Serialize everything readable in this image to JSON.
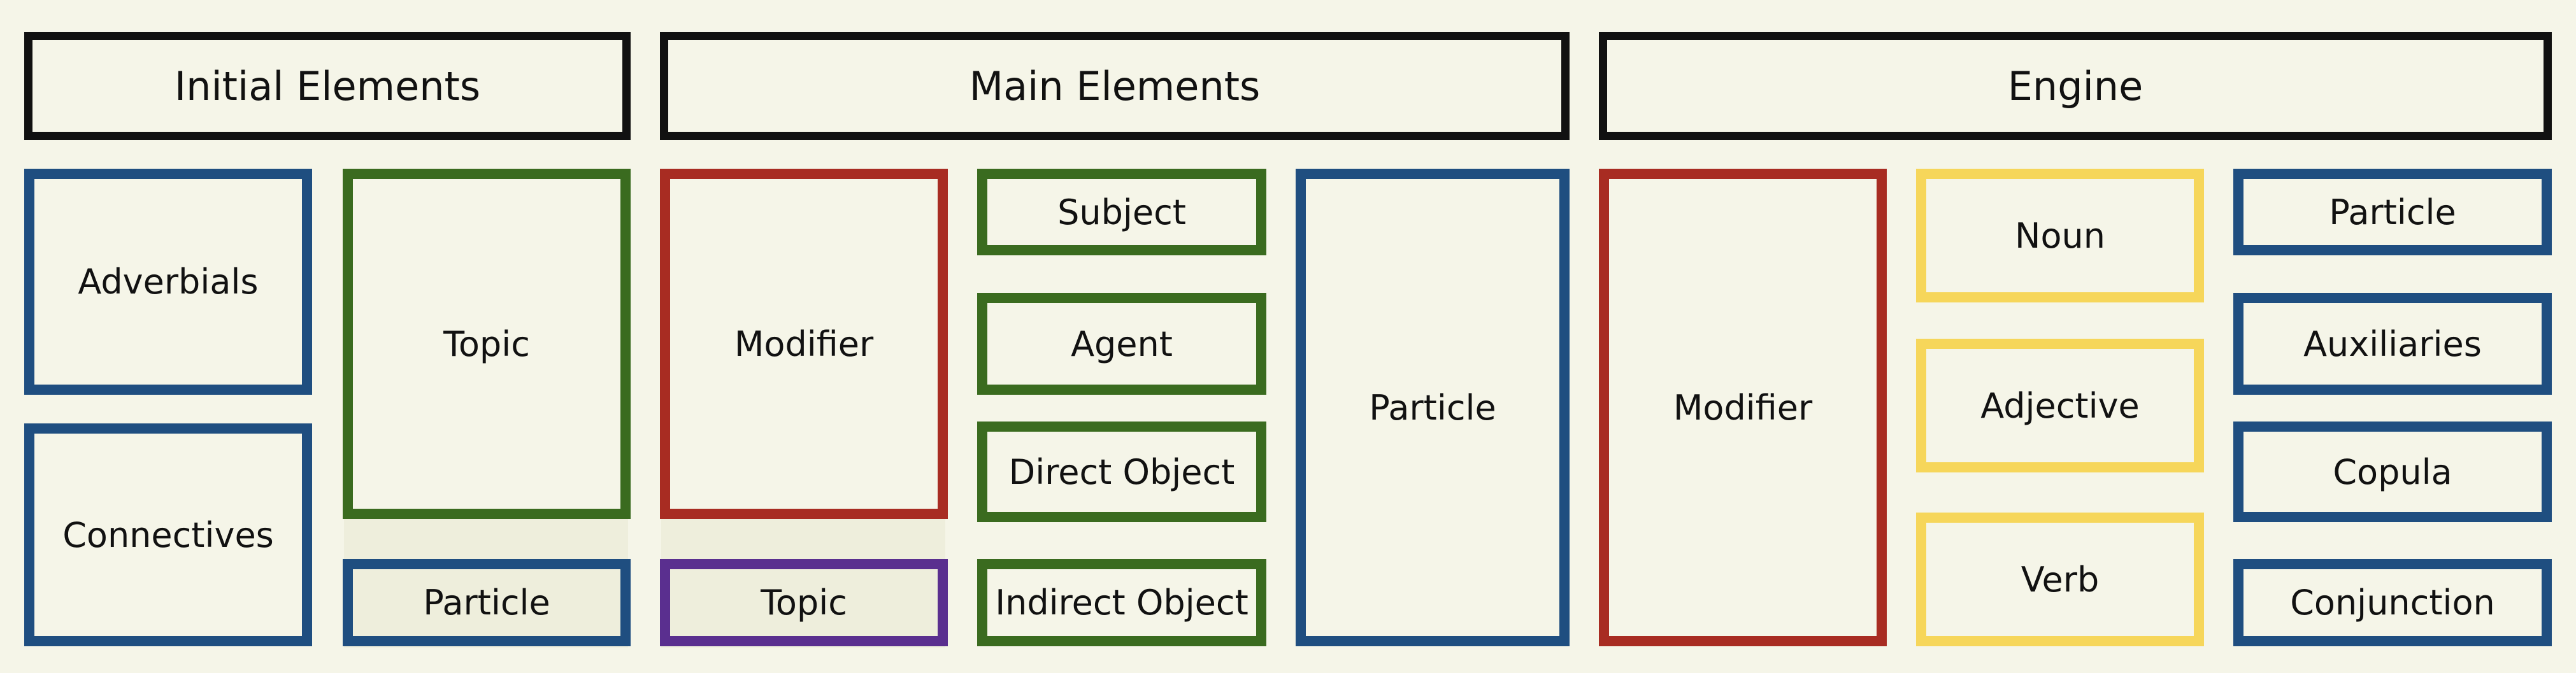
{
  "colors": {
    "background": "#f5f5e8",
    "header_border": "#111111",
    "blue": "#1f4e80",
    "green": "#3a6b1f",
    "red": "#a82c22",
    "purple": "#5a2f8f",
    "yellow": "#f6d65a",
    "text": "#111111"
  },
  "headers": {
    "initial": "Initial Elements",
    "main": "Main Elements",
    "engine": "Engine"
  },
  "initial": {
    "adverbials": {
      "label": "Adverbials",
      "color": "blue"
    },
    "connectives": {
      "label": "Connectives",
      "color": "blue"
    },
    "topic": {
      "label": "Topic",
      "color": "green"
    },
    "particle": {
      "label": "Particle",
      "color": "blue"
    }
  },
  "main": {
    "modifier": {
      "label": "Modifier",
      "color": "red"
    },
    "topic": {
      "label": "Topic",
      "color": "purple"
    },
    "subject": {
      "label": "Subject",
      "color": "green"
    },
    "agent": {
      "label": "Agent",
      "color": "green"
    },
    "direct_object": {
      "label": "Direct Object",
      "color": "green"
    },
    "indirect_object": {
      "label": "Indirect Object",
      "color": "green"
    },
    "particle": {
      "label": "Particle",
      "color": "blue"
    }
  },
  "engine": {
    "modifier": {
      "label": "Modifier",
      "color": "red"
    },
    "noun": {
      "label": "Noun",
      "color": "yellow"
    },
    "adjective": {
      "label": "Adjective",
      "color": "yellow"
    },
    "verb": {
      "label": "Verb",
      "color": "yellow"
    },
    "particle": {
      "label": "Particle",
      "color": "blue"
    },
    "auxiliaries": {
      "label": "Auxiliaries",
      "color": "blue"
    },
    "copula": {
      "label": "Copula",
      "color": "blue"
    },
    "conjunction": {
      "label": "Conjunction",
      "color": "blue"
    }
  }
}
